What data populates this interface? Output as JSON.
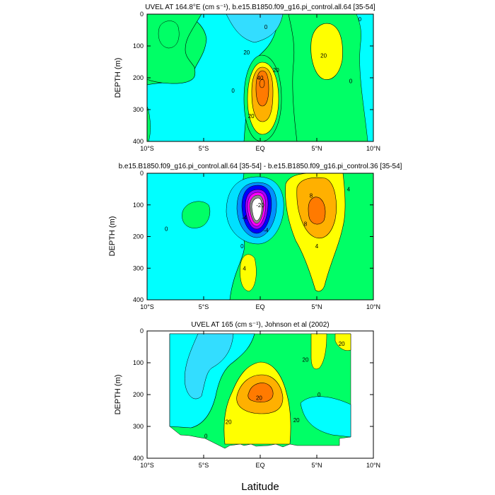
{
  "colors": {
    "levels": [
      "#00ffff",
      "#00ff66",
      "#ffff00",
      "#ffb000",
      "#ff7a00"
    ],
    "negative": [
      "#00ffff",
      "#00e0ff",
      "#0090ff",
      "#0000ff",
      "#a000ff",
      "#ff00ff",
      "#8c8c8c",
      "#ffffff"
    ],
    "lines": "#000000"
  },
  "chart_data": [
    {
      "type": "contour",
      "title": "UVEL AT 164.8°E (cm s⁻¹), b.e15.B1850.f09_g16.pi_control.all.64 [35-54]",
      "ylabel": "DEPTH (m)",
      "xlabel": "",
      "x_ticks": [
        "10°S",
        "5°S",
        "EQ",
        "5°N",
        "10°N"
      ],
      "y_ticks": [
        "0",
        "100",
        "200",
        "300",
        "400"
      ],
      "xlim": [
        -10,
        10
      ],
      "ylim": [
        400,
        0
      ],
      "contour_labels": [
        {
          "text": "0",
          "x": 0.5,
          "y": 40
        },
        {
          "text": "20",
          "x": -1.2,
          "y": 120
        },
        {
          "text": "20",
          "x": 1.4,
          "y": 175
        },
        {
          "text": "40",
          "x": 0.0,
          "y": 200
        },
        {
          "text": "0",
          "x": -2.4,
          "y": 240
        },
        {
          "text": "20",
          "x": -0.8,
          "y": 320
        },
        {
          "text": "20",
          "x": 5.6,
          "y": 130
        },
        {
          "text": "0",
          "x": 8.0,
          "y": 210
        },
        {
          "text": "0",
          "x": 8.8,
          "y": 15
        }
      ]
    },
    {
      "type": "contour",
      "title": "b.e15.B1850.f09_g16.pi_control.all.64 [35-54] - b.e15.B1850.f09_g16.pi_control.36 [35-54]",
      "ylabel": "DEPTH (m)",
      "xlabel": "",
      "x_ticks": [
        "10°S",
        "5°S",
        "EQ",
        "5°N",
        "10°N"
      ],
      "y_ticks": [
        "0",
        "100",
        "200",
        "300",
        "400"
      ],
      "xlim": [
        -10,
        10
      ],
      "ylim": [
        400,
        0
      ],
      "contour_labels": [
        {
          "text": "-4",
          "x": -1.4,
          "y": 140
        },
        {
          "text": "-20",
          "x": 0.0,
          "y": 100
        },
        {
          "text": "0",
          "x": -8.3,
          "y": 175
        },
        {
          "text": "-4",
          "x": 0.5,
          "y": 180
        },
        {
          "text": "8",
          "x": 4.5,
          "y": 70
        },
        {
          "text": "8",
          "x": 4.0,
          "y": 160
        },
        {
          "text": "4",
          "x": 7.8,
          "y": 50
        },
        {
          "text": "4",
          "x": 5.0,
          "y": 230
        },
        {
          "text": "0",
          "x": -1.6,
          "y": 230
        },
        {
          "text": "4",
          "x": -1.4,
          "y": 300
        }
      ]
    },
    {
      "type": "contour",
      "title": "UVEL AT 165 (cm s⁻¹), Johnson et al (2002)",
      "ylabel": "DEPTH (m)",
      "xlabel": "Latitude",
      "x_ticks": [
        "10°S",
        "5°S",
        "EQ",
        "5°N",
        "10°N"
      ],
      "y_ticks": [
        "0",
        "100",
        "200",
        "300",
        "400"
      ],
      "xlim": [
        -10,
        10
      ],
      "ylim": [
        400,
        0
      ],
      "data_extent": {
        "lat": [
          -8,
          8
        ],
        "depth": [
          0,
          360
        ]
      },
      "contour_labels": [
        {
          "text": "20",
          "x": 7.2,
          "y": 40
        },
        {
          "text": "20",
          "x": 4.0,
          "y": 90
        },
        {
          "text": "0",
          "x": 5.2,
          "y": 200
        },
        {
          "text": "20",
          "x": -0.1,
          "y": 210
        },
        {
          "text": "20",
          "x": -2.8,
          "y": 285
        },
        {
          "text": "20",
          "x": 3.2,
          "y": 280
        },
        {
          "text": "0",
          "x": -4.8,
          "y": 330
        }
      ]
    }
  ]
}
